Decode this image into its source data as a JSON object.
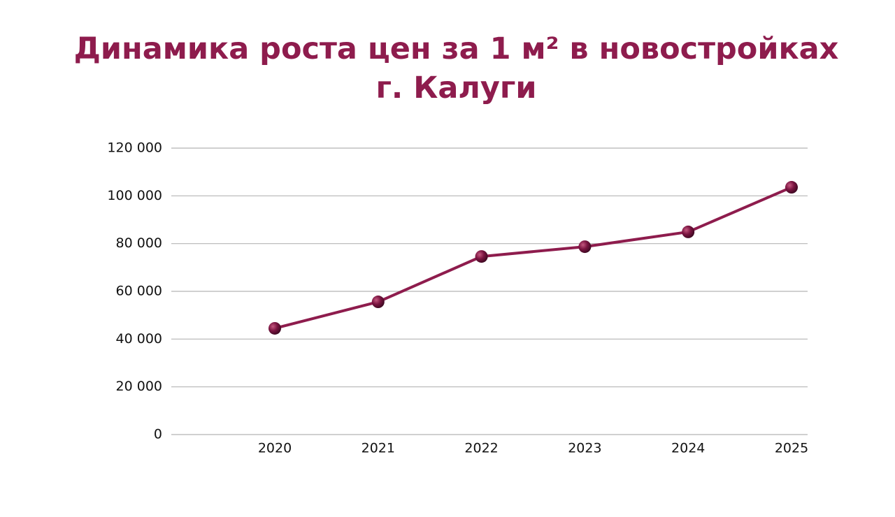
{
  "chart_data": {
    "type": "line",
    "title": "Динамика роста цен за 1 м² в новостройках г. Калуги",
    "categories": [
      "2020",
      "2021",
      "2022",
      "2023",
      "2024",
      "2025"
    ],
    "series": [
      {
        "color": "#8e1c4d",
        "values": [
          44500,
          55600,
          74600,
          78700,
          84900,
          103600
        ]
      }
    ],
    "ylim": [
      0,
      120000
    ],
    "yticks": [
      0,
      {
        "value": 20000,
        "label": "20 000"
      },
      {
        "value": 40000,
        "label": "40 000"
      },
      {
        "value": 60000,
        "label": "60 000"
      },
      {
        "value": 80000,
        "label": "80 000"
      },
      {
        "value": 100000,
        "label": "100 000"
      },
      {
        "value": 120000,
        "label": "120 000"
      }
    ],
    "grid": true
  }
}
